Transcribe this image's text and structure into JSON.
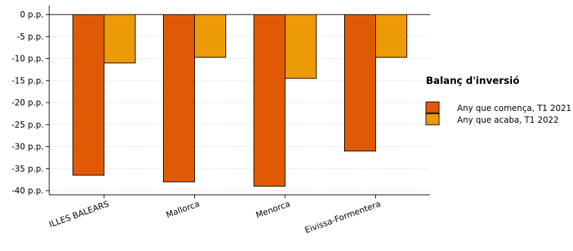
{
  "chart_data": {
    "type": "bar",
    "categories": [
      "ILLES BALEARS",
      "Mallorca",
      "Menorca",
      "Eivissa-Formentera"
    ],
    "series": [
      {
        "name": "Any que comença, T1 2021",
        "values": [
          -36.5,
          -38.0,
          -39.0,
          -31.0
        ],
        "color": "#e05a05"
      },
      {
        "name": "Any que acaba, T1 2022",
        "values": [
          -11.0,
          -9.7,
          -14.5,
          -9.7
        ],
        "color": "#ec9a07"
      }
    ],
    "yticks": [
      {
        "value": 0,
        "label": "0 p.p."
      },
      {
        "value": -5,
        "label": "-5 p.p."
      },
      {
        "value": -10,
        "label": "-10 p.p."
      },
      {
        "value": -15,
        "label": "-15 p.p."
      },
      {
        "value": -20,
        "label": "-20 p.p."
      },
      {
        "value": -25,
        "label": "-25 p.p."
      },
      {
        "value": -30,
        "label": "-30 p.p."
      },
      {
        "value": -35,
        "label": "-35 p.p."
      },
      {
        "value": -40,
        "label": "-40 p.p."
      }
    ],
    "ylim": [
      -41,
      2
    ],
    "legend_title": "Balanç d'inversió",
    "legend_position": "right",
    "grid": "horizontal-dotted"
  }
}
